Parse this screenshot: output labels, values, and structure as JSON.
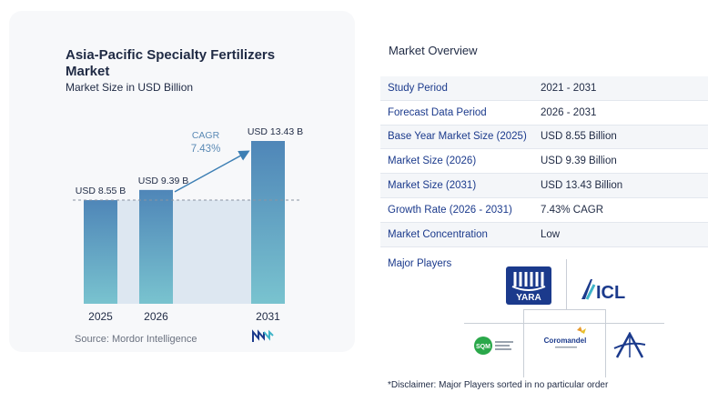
{
  "chart": {
    "title": "Asia-Pacific Specialty Fertilizers Market",
    "subtitle": "Market Size in USD Billion",
    "source": "Source:  Mordor Intelligence",
    "cagr_label": "CAGR",
    "cagr_value": "7.43%"
  },
  "chart_data": {
    "type": "bar",
    "categories": [
      "2025",
      "2026",
      "2031"
    ],
    "values": [
      8.55,
      9.39,
      13.43
    ],
    "value_labels": [
      "USD 8.55 B",
      "USD 9.39 B",
      "USD 13.43 B"
    ],
    "title": "Asia-Pacific Specialty Fertilizers Market",
    "subtitle": "Market Size in USD Billion",
    "xlabel": "",
    "ylabel": "",
    "ylim": [
      0,
      14
    ],
    "annotation": "CAGR 7.43%",
    "grid": false
  },
  "colors": {
    "bar_top": "#4f86b8",
    "bar_bottom": "#79c3cf",
    "shade": "#dde7f1",
    "accent": "#3d7fb4",
    "brand_navy": "#1b3a8c"
  },
  "overview": {
    "title": "Market Overview",
    "rows": [
      {
        "key": "Study Period",
        "value": "2021 - 2031"
      },
      {
        "key": "Forecast Data Period",
        "value": "2026 - 2031"
      },
      {
        "key": "Base Year Market Size (2025)",
        "value": "USD 8.55 Billion"
      },
      {
        "key": "Market Size (2026)",
        "value": "USD 9.39 Billion"
      },
      {
        "key": "Market Size (2031)",
        "value": "USD 13.43 Billion"
      },
      {
        "key": "Growth Rate (2026 - 2031)",
        "value": "7.43% CAGR"
      },
      {
        "key": "Market Concentration",
        "value": "Low"
      }
    ],
    "players_label": "Major Players",
    "players": [
      "YARA",
      "ICL",
      "SQM",
      "Coromandel"
    ],
    "disclaimer": "*Disclaimer: Major Players sorted in no particular order"
  }
}
